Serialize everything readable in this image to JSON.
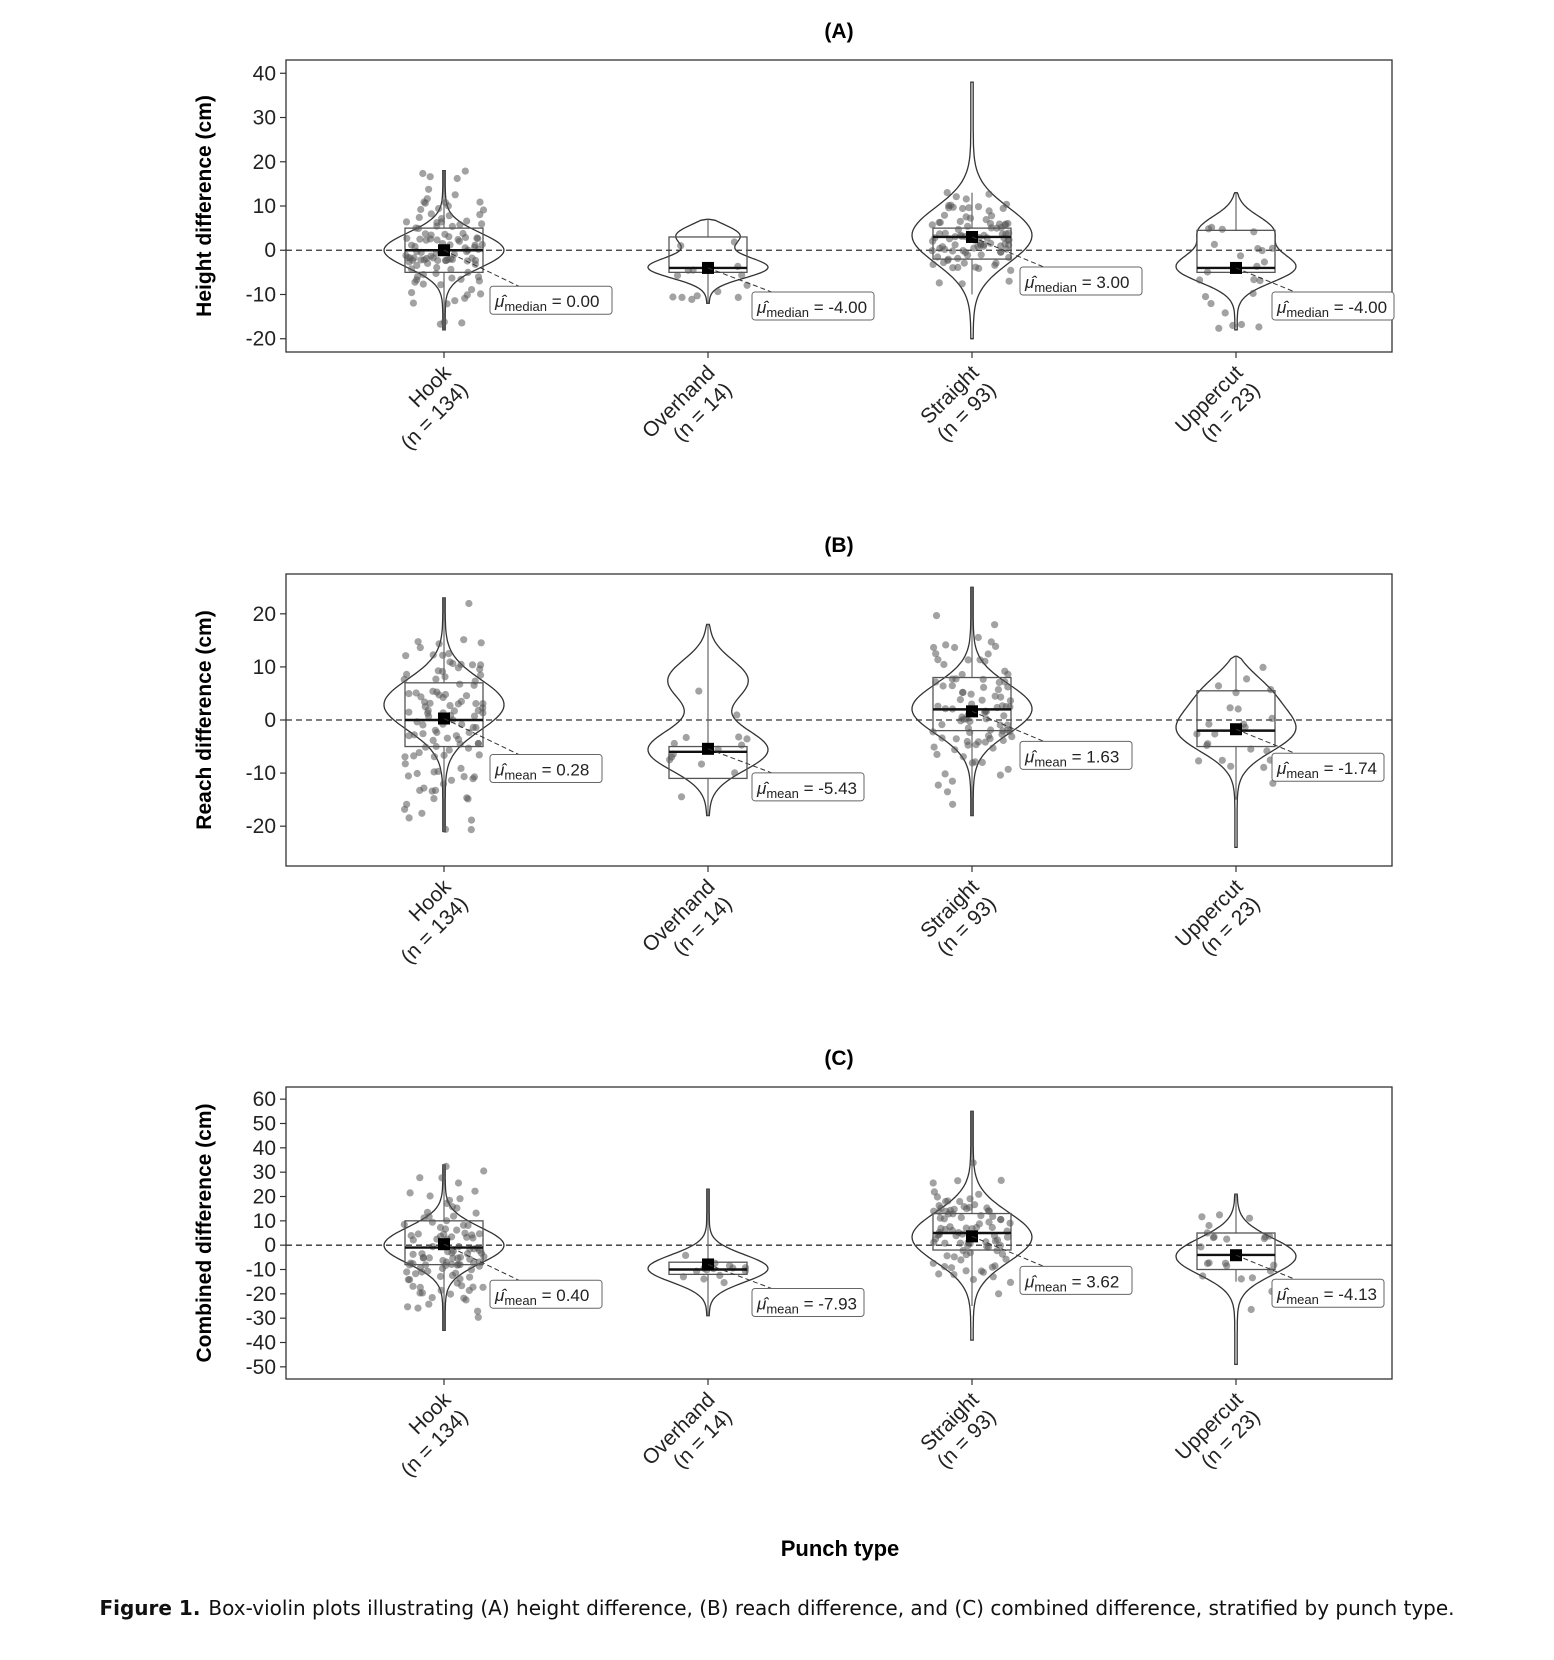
{
  "figure": {
    "caption_label": "Figure 1.",
    "caption_text": "Box-violin plots illustrating (A) height difference, (B) reach difference, and (C) combined difference, stratified by punch type.",
    "xlabel": "Punch type"
  },
  "chart_data": [
    {
      "type": "box-violin",
      "title": "(A)",
      "ylabel": "Height difference (cm)",
      "ylim": [
        -23,
        43
      ],
      "yticks": [
        -20,
        -10,
        0,
        10,
        20,
        30,
        40
      ],
      "reference_line": 0,
      "categories": [
        "Hook\n(n = 134)",
        "Overhand\n(n = 14)",
        "Straight\n(n = 93)",
        "Uppercut\n(n = 23)"
      ],
      "stat_label": "median",
      "groups": [
        {
          "name": "Hook",
          "n": 134,
          "center": 0.0,
          "label": "0.00",
          "q1": -5,
          "median": 0,
          "q3": 5,
          "whisker_low": -18,
          "whisker_high": 18,
          "min": -18,
          "max": 18,
          "density_peaks": [
            0
          ]
        },
        {
          "name": "Overhand",
          "n": 14,
          "center": -4.0,
          "label": "-4.00",
          "q1": -5,
          "median": -4,
          "q3": 3,
          "whisker_low": -12,
          "whisker_high": 7,
          "min": -12,
          "max": 7,
          "density_peaks": [
            -4,
            4
          ]
        },
        {
          "name": "Straight",
          "n": 93,
          "center": 3.0,
          "label": "3.00",
          "q1": -2,
          "median": 3,
          "q3": 5,
          "whisker_low": -10,
          "whisker_high": 13,
          "min": -20,
          "max": 38,
          "density_peaks": [
            3
          ]
        },
        {
          "name": "Uppercut",
          "n": 23,
          "center": -4.0,
          "label": "-4.00",
          "q1": -5,
          "median": -4,
          "q3": 4.5,
          "whisker_low": -5,
          "whisker_high": 13,
          "min": -18,
          "max": 13,
          "density_peaks": [
            -4,
            5
          ]
        }
      ]
    },
    {
      "type": "box-violin",
      "title": "(B)",
      "ylabel": "Reach difference (cm)",
      "ylim": [
        -27.5,
        27.5
      ],
      "yticks": [
        -20,
        -10,
        0,
        10,
        20
      ],
      "reference_line": 0,
      "categories": [
        "Hook\n(n = 134)",
        "Overhand\n(n = 14)",
        "Straight\n(n = 93)",
        "Uppercut\n(n = 23)"
      ],
      "stat_label": "mean",
      "groups": [
        {
          "name": "Hook",
          "n": 134,
          "center": 0.28,
          "label": "0.28",
          "q1": -5,
          "median": 0,
          "q3": 7,
          "whisker_low": -21,
          "whisker_high": 23,
          "min": -21,
          "max": 23,
          "density_peaks": [
            3
          ]
        },
        {
          "name": "Overhand",
          "n": 14,
          "center": -5.43,
          "label": "-5.43",
          "q1": -11,
          "median": -6,
          "q3": -5,
          "whisker_low": -18,
          "whisker_high": 18,
          "min": -18,
          "max": 18,
          "density_peaks": [
            -6,
            8
          ]
        },
        {
          "name": "Straight",
          "n": 93,
          "center": 1.63,
          "label": "1.63",
          "q1": -2,
          "median": 2,
          "q3": 8,
          "whisker_low": -18,
          "whisker_high": 25,
          "min": -18,
          "max": 25,
          "density_peaks": [
            2
          ]
        },
        {
          "name": "Uppercut",
          "n": 23,
          "center": -1.74,
          "label": "-1.74",
          "q1": -5,
          "median": -2,
          "q3": 5.5,
          "whisker_low": -15,
          "whisker_high": 12,
          "min": -24,
          "max": 12,
          "density_peaks": [
            -2,
            6
          ]
        }
      ]
    },
    {
      "type": "box-violin",
      "title": "(C)",
      "ylabel": "Combined difference (cm)",
      "ylim": [
        -55,
        65
      ],
      "yticks": [
        -50,
        -40,
        -30,
        -20,
        -10,
        0,
        10,
        20,
        30,
        40,
        50,
        60
      ],
      "reference_line": 0,
      "categories": [
        "Hook\n(n = 134)",
        "Overhand\n(n = 14)",
        "Straight\n(n = 93)",
        "Uppercut\n(n = 23)"
      ],
      "stat_label": "mean",
      "groups": [
        {
          "name": "Hook",
          "n": 134,
          "center": 0.4,
          "label": "0.40",
          "q1": -8,
          "median": -1,
          "q3": 10,
          "whisker_low": -35,
          "whisker_high": 33,
          "min": -35,
          "max": 33,
          "density_peaks": [
            0
          ]
        },
        {
          "name": "Overhand",
          "n": 14,
          "center": -7.93,
          "label": "-7.93",
          "q1": -12,
          "median": -10,
          "q3": -7,
          "whisker_low": -29,
          "whisker_high": 23,
          "min": -29,
          "max": 23,
          "density_peaks": [
            -10
          ]
        },
        {
          "name": "Straight",
          "n": 93,
          "center": 3.62,
          "label": "3.62",
          "q1": -2,
          "median": 5,
          "q3": 13,
          "whisker_low": -25,
          "whisker_high": 55,
          "min": -39,
          "max": 55,
          "density_peaks": [
            3
          ]
        },
        {
          "name": "Uppercut",
          "n": 23,
          "center": -4.13,
          "label": "-4.13",
          "q1": -10,
          "median": -4,
          "q3": 5,
          "whisker_low": -15,
          "whisker_high": 21,
          "min": -49,
          "max": 21,
          "density_peaks": [
            -4
          ]
        }
      ]
    }
  ]
}
